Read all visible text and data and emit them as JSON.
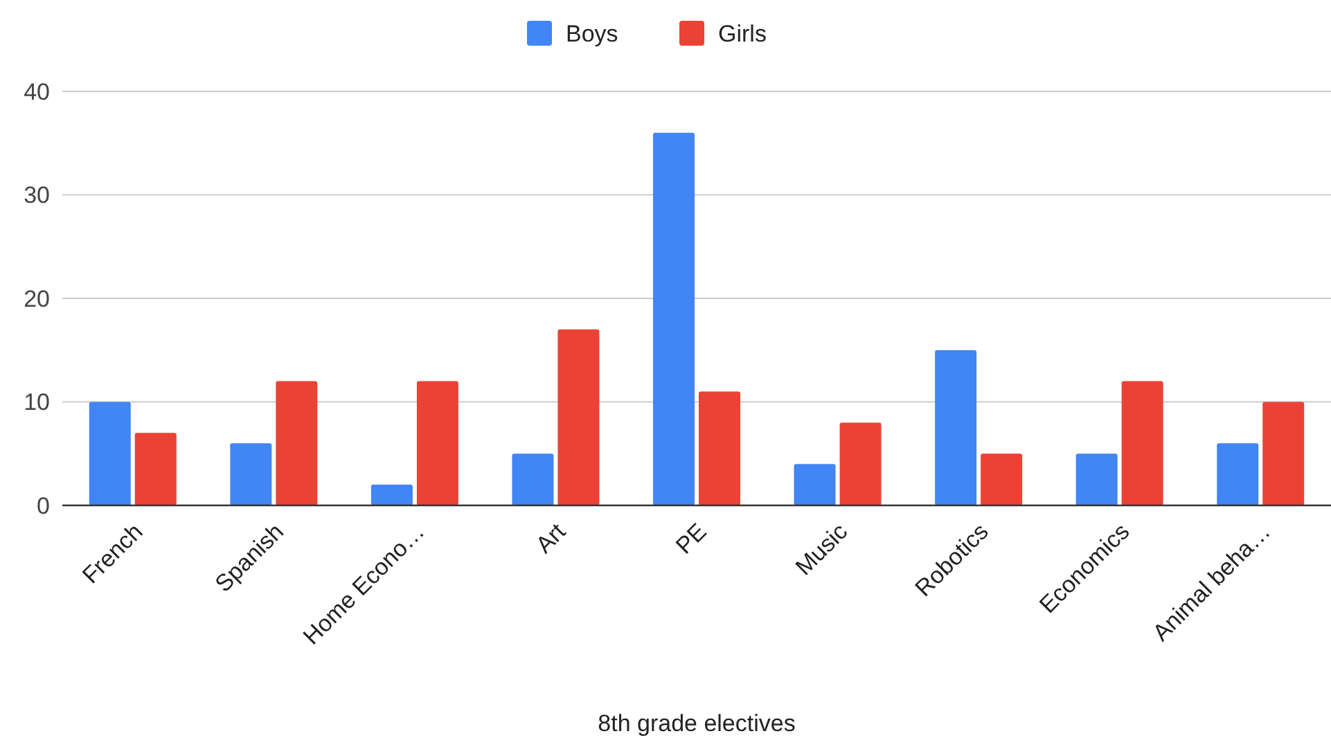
{
  "chart_data": {
    "type": "bar",
    "xlabel": "8th grade electives",
    "categories": [
      "French",
      "Spanish",
      "Home Econo…",
      "Art",
      "PE",
      "Music",
      "Robotics",
      "Economics",
      "Animal beha…"
    ],
    "series": [
      {
        "name": "Boys",
        "color": "#4285f4",
        "values": [
          10,
          6,
          2,
          5,
          36,
          4,
          15,
          5,
          6
        ]
      },
      {
        "name": "Girls",
        "color": "#ea4335",
        "values": [
          7,
          12,
          12,
          17,
          11,
          8,
          5,
          12,
          10
        ]
      }
    ],
    "ylim": [
      0,
      40
    ],
    "yticks": [
      0,
      10,
      20,
      30,
      40
    ],
    "grid": "y",
    "legend": "top"
  }
}
